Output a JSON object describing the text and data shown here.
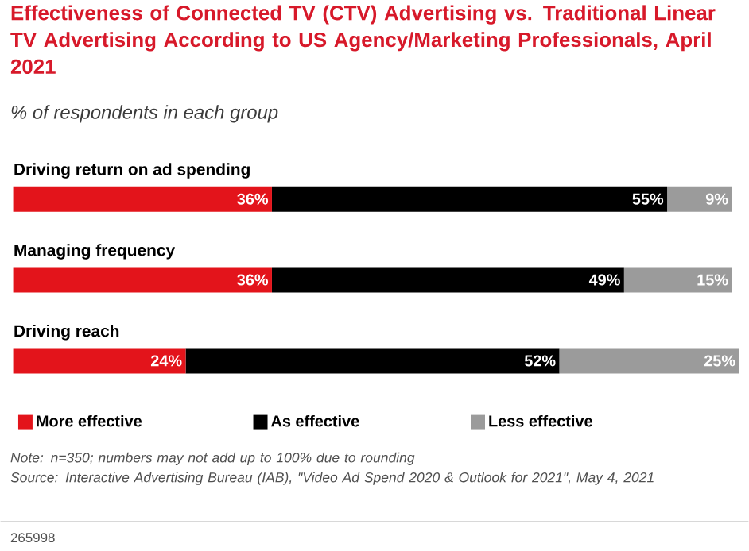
{
  "chart_data": {
    "type": "bar",
    "orientation": "horizontal",
    "stacked": true,
    "title": "Effectiveness of Connected TV (CTV) Advertising vs. Traditional Linear TV Advertising According to US Agency/Marketing Professionals, April 2021",
    "subtitle": "% of respondents in each group",
    "categories": [
      "Driving return on ad spending",
      "Managing frequency",
      "Driving reach"
    ],
    "series": [
      {
        "name": "More effective",
        "color": "#e3141b",
        "values": [
          36,
          36,
          24
        ],
        "value_labels": [
          "36%",
          "36%",
          "24%"
        ]
      },
      {
        "name": "As effective",
        "color": "#000000",
        "values": [
          55,
          49,
          52
        ],
        "value_labels": [
          "55%",
          "49%",
          "52%"
        ]
      },
      {
        "name": "Less effective",
        "color": "#9b9b9b",
        "values": [
          9,
          15,
          25
        ],
        "value_labels": [
          "9%",
          "15%",
          "25%"
        ]
      }
    ],
    "legend": "bottom",
    "annotations": [
      "Note: n=350; numbers may not add up to 100% due to rounding",
      "Source: Interactive Advertising Bureau (IAB), \"Video Ad Spend 2020 & Outlook for 2021\", May 4, 2021",
      "265998"
    ]
  }
}
